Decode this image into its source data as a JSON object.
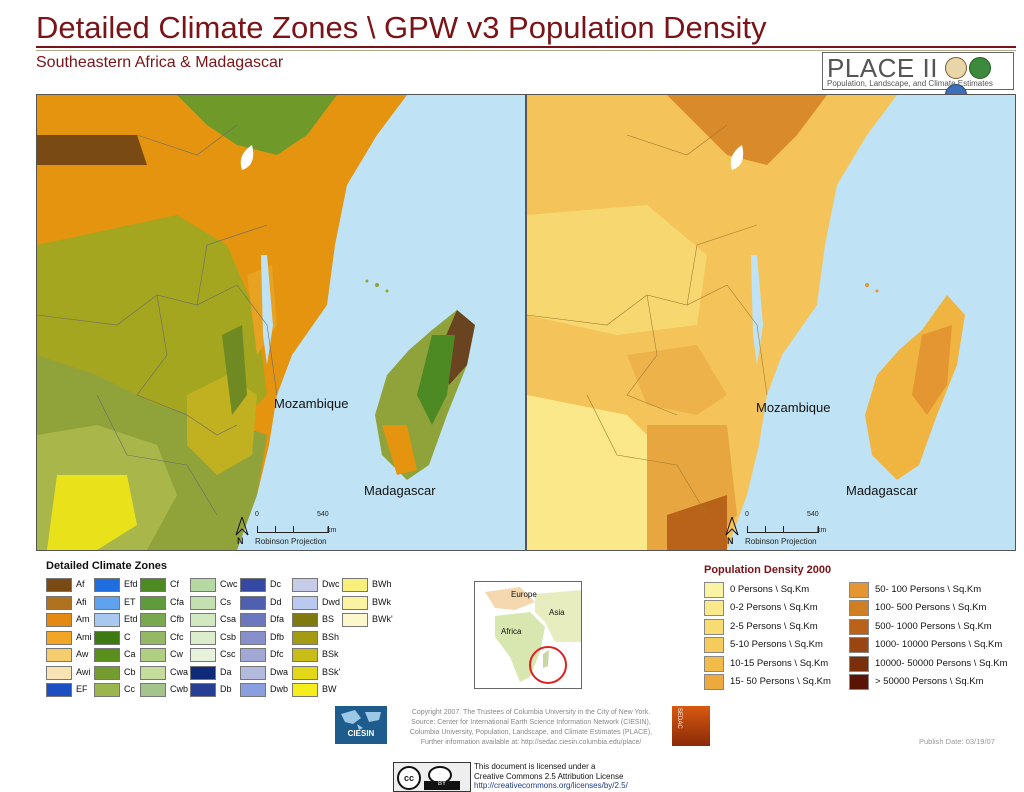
{
  "title": "Detailed Climate Zones \\ GPW v3 Population Density",
  "subtitle": "Southeastern Africa & Madagascar",
  "logo": {
    "word": "PLACE II",
    "tagline": "Population, Landscape, and Climate Estimates"
  },
  "maps": {
    "left": {
      "labels": {
        "mozambique": "Mozambique",
        "madagascar": "Madagascar"
      },
      "scale": {
        "zero": "0",
        "max": "540",
        "unit": "km",
        "projection": "Robinson Projection"
      },
      "north": "N"
    },
    "right": {
      "labels": {
        "mozambique": "Mozambique",
        "madagascar": "Madagascar"
      },
      "scale": {
        "zero": "0",
        "max": "540",
        "unit": "km",
        "projection": "Robinson Projection"
      },
      "north": "N"
    }
  },
  "climate_legend": {
    "title": "Detailed Climate Zones",
    "columns": [
      [
        {
          "label": "Af",
          "color": "#7a4a14"
        },
        {
          "label": "Afi",
          "color": "#b0721e"
        },
        {
          "label": "Am",
          "color": "#e48a12"
        },
        {
          "label": "Ami",
          "color": "#f3a626"
        },
        {
          "label": "Aw",
          "color": "#f5cc6e"
        },
        {
          "label": "Awi",
          "color": "#f8e3b4"
        },
        {
          "label": "EF",
          "color": "#1b4fc2"
        }
      ],
      [
        {
          "label": "Efd",
          "color": "#1f6ee0"
        },
        {
          "label": "ET",
          "color": "#5fa2ee"
        },
        {
          "label": "Etd",
          "color": "#a8c8ef"
        },
        {
          "label": "C",
          "color": "#3e7a12"
        },
        {
          "label": "Ca",
          "color": "#5a8f1e"
        },
        {
          "label": "Cb",
          "color": "#759c2e"
        },
        {
          "label": "Cc",
          "color": "#9bb64f"
        }
      ],
      [
        {
          "label": "Cf",
          "color": "#4d8a24"
        },
        {
          "label": "Cfa",
          "color": "#5f9a3c"
        },
        {
          "label": "Cfb",
          "color": "#7aa84e"
        },
        {
          "label": "Cfc",
          "color": "#95b866"
        },
        {
          "label": "Cw",
          "color": "#b1cf82"
        },
        {
          "label": "Cwa",
          "color": "#c6dc9c"
        },
        {
          "label": "Cwb",
          "color": "#a3c48a"
        }
      ],
      [
        {
          "label": "Cwc",
          "color": "#b6d8a2"
        },
        {
          "label": "Cs",
          "color": "#c4e0b0"
        },
        {
          "label": "Csa",
          "color": "#d2e8c0"
        },
        {
          "label": "Csb",
          "color": "#dcedcd"
        },
        {
          "label": "Csc",
          "color": "#e6f2dc"
        },
        {
          "label": "Da",
          "color": "#0f2a78"
        },
        {
          "label": "Db",
          "color": "#263f94"
        }
      ],
      [
        {
          "label": "Dc",
          "color": "#3548a3"
        },
        {
          "label": "Dd",
          "color": "#5060b0"
        },
        {
          "label": "Dfa",
          "color": "#6b78bd"
        },
        {
          "label": "Dfb",
          "color": "#8790ca"
        },
        {
          "label": "Dfc",
          "color": "#a2a8d6"
        },
        {
          "label": "Dwa",
          "color": "#b4b9de"
        },
        {
          "label": "Dwb",
          "color": "#8a9fe0"
        }
      ],
      [
        {
          "label": "Dwc",
          "color": "#c6cbe8"
        },
        {
          "label": "Dwd",
          "color": "#b9c9f0"
        },
        {
          "label": "BS",
          "color": "#7e7a10"
        },
        {
          "label": "BSh",
          "color": "#a49b12"
        },
        {
          "label": "BSk",
          "color": "#c8bd16"
        },
        {
          "label": "BSk'",
          "color": "#e2d818"
        },
        {
          "label": "BW",
          "color": "#f5ee1c"
        }
      ],
      [
        {
          "label": "BWh",
          "color": "#f8f07a"
        },
        {
          "label": "BWk",
          "color": "#faf4a2"
        },
        {
          "label": "BWk'",
          "color": "#fcf8cc"
        }
      ]
    ]
  },
  "inset": {
    "europe": "Europe",
    "asia": "Asia",
    "africa": "Africa"
  },
  "population_legend": {
    "title": "Population Density  2000",
    "left": [
      {
        "label": "0 Persons \\ Sq.Km",
        "color": "#fbf3a4"
      },
      {
        "label": "0-2 Persons \\ Sq.Km",
        "color": "#fae98a"
      },
      {
        "label": "2-5 Persons \\ Sq.Km",
        "color": "#f8db72"
      },
      {
        "label": "5-10 Persons \\ Sq.Km",
        "color": "#f5cc5c"
      },
      {
        "label": "10-15 Persons \\ Sq.Km",
        "color": "#f2bb48"
      },
      {
        "label": "15- 50 Persons \\ Sq.Km",
        "color": "#eda93c"
      }
    ],
    "right": [
      {
        "label": "50- 100 Persons \\ Sq.Km",
        "color": "#e39632"
      },
      {
        "label": "100- 500 Persons \\ Sq.Km",
        "color": "#d07e24"
      },
      {
        "label": "500- 1000 Persons \\ Sq.Km",
        "color": "#b9621a"
      },
      {
        "label": "1000- 10000 Persons \\ Sq.Km",
        "color": "#9a4612"
      },
      {
        "label": "10000- 50000 Persons \\ Sq.Km",
        "color": "#7a2e0c"
      },
      {
        "label": "> 50000 Persons \\ Sq.Km",
        "color": "#5a1406"
      }
    ]
  },
  "footer": {
    "ciesin": "CIESIN",
    "sedac": "SEDAC",
    "copyright": [
      "Copyright 2007. The Trustees of Columbia University in the City of New York.",
      "Source: Center for International Earth Science Information Network (CIESIN),",
      "Columbia University, Population, Landscape, and Climate Estimates (PLACE),",
      "Further information available at:  http://sedac.ciesin.columbia.edu/place/"
    ],
    "publish_date": "Publish Date: 03/19/07",
    "cc": {
      "cc": "cc",
      "by": "BY"
    },
    "license": [
      "This document is licensed under a",
      "Creative Commons 2.5 Attribution License",
      "http://creativecommons.org/licenses/by/2.5/"
    ]
  }
}
